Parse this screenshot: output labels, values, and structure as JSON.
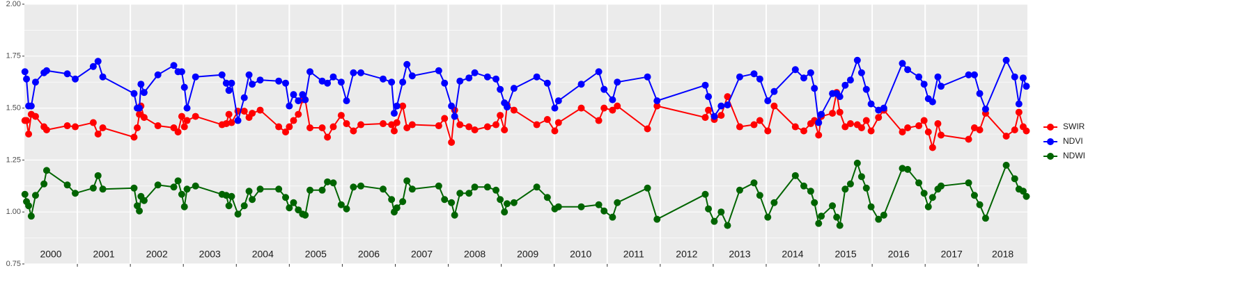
{
  "chart_data": {
    "type": "line",
    "x": [
      2000.01,
      2000.04,
      2000.08,
      2000.13,
      2000.21,
      2000.37,
      2000.42,
      2000.81,
      2000.96,
      2001.3,
      2001.39,
      2001.48,
      2002.07,
      2002.13,
      2002.17,
      2002.2,
      2002.26,
      2002.52,
      2002.82,
      2002.9,
      2002.97,
      2003.02,
      2003.07,
      2003.23,
      2003.73,
      2003.81,
      2003.86,
      2003.91,
      2004.03,
      2004.15,
      2004.24,
      2004.3,
      2004.45,
      2004.8,
      2004.93,
      2005.0,
      2005.08,
      2005.17,
      2005.25,
      2005.3,
      2005.39,
      2005.62,
      2005.72,
      2005.83,
      2005.98,
      2006.08,
      2006.21,
      2006.35,
      2006.77,
      2006.93,
      2006.98,
      2007.03,
      2007.14,
      2007.22,
      2007.32,
      2007.82,
      2007.93,
      2008.06,
      2008.12,
      2008.22,
      2008.39,
      2008.5,
      2008.74,
      2008.9,
      2008.98,
      2009.06,
      2009.11,
      2009.24,
      2009.67,
      2009.87,
      2010.01,
      2010.08,
      2010.51,
      2010.84,
      2010.94,
      2011.1,
      2011.19,
      2011.76,
      2011.94,
      2012.85,
      2012.91,
      2013.02,
      2013.15,
      2013.27,
      2013.5,
      2013.77,
      2013.88,
      2014.03,
      2014.15,
      2014.55,
      2014.71,
      2014.84,
      2014.91,
      2014.99,
      2015.04,
      2015.25,
      2015.33,
      2015.39,
      2015.49,
      2015.59,
      2015.72,
      2015.8,
      2015.89,
      2015.98,
      2016.12,
      2016.22,
      2016.57,
      2016.67,
      2016.88,
      2016.98,
      2017.06,
      2017.14,
      2017.24,
      2017.3,
      2017.82,
      2017.93,
      2018.03,
      2018.14,
      2018.53,
      2018.69,
      2018.77,
      2018.85,
      2018.91
    ],
    "series": [
      {
        "name": "SWIR",
        "color": "#ff0000",
        "values": [
          1.44,
          1.44,
          1.375,
          1.47,
          1.46,
          1.41,
          1.395,
          1.415,
          1.41,
          1.43,
          1.375,
          1.405,
          1.36,
          1.405,
          1.47,
          1.51,
          1.455,
          1.415,
          1.405,
          1.385,
          1.46,
          1.41,
          1.44,
          1.46,
          1.42,
          1.425,
          1.47,
          1.43,
          1.485,
          1.485,
          1.455,
          1.475,
          1.49,
          1.41,
          1.385,
          1.41,
          1.44,
          1.47,
          1.54,
          1.54,
          1.405,
          1.405,
          1.36,
          1.41,
          1.465,
          1.425,
          1.39,
          1.42,
          1.425,
          1.42,
          1.39,
          1.43,
          1.51,
          1.405,
          1.42,
          1.415,
          1.45,
          1.335,
          1.49,
          1.42,
          1.41,
          1.395,
          1.41,
          1.42,
          1.465,
          1.395,
          1.515,
          1.49,
          1.42,
          1.445,
          1.39,
          1.43,
          1.5,
          1.44,
          1.5,
          1.49,
          1.51,
          1.4,
          1.51,
          1.455,
          1.49,
          1.445,
          1.465,
          1.555,
          1.41,
          1.42,
          1.44,
          1.39,
          1.51,
          1.41,
          1.39,
          1.425,
          1.44,
          1.37,
          1.46,
          1.475,
          1.575,
          1.48,
          1.41,
          1.425,
          1.42,
          1.405,
          1.44,
          1.39,
          1.455,
          1.49,
          1.385,
          1.405,
          1.415,
          1.44,
          1.385,
          1.31,
          1.425,
          1.37,
          1.35,
          1.405,
          1.395,
          1.475,
          1.365,
          1.395,
          1.48,
          1.41,
          1.39
        ]
      },
      {
        "name": "NDVI",
        "color": "#0000ff",
        "values": [
          1.675,
          1.64,
          1.51,
          1.51,
          1.625,
          1.67,
          1.68,
          1.665,
          1.64,
          1.7,
          1.725,
          1.65,
          1.57,
          1.5,
          1.5,
          1.615,
          1.575,
          1.66,
          1.705,
          1.675,
          1.675,
          1.6,
          1.5,
          1.65,
          1.66,
          1.62,
          1.585,
          1.62,
          1.44,
          1.55,
          1.66,
          1.615,
          1.635,
          1.63,
          1.62,
          1.51,
          1.565,
          1.535,
          1.565,
          1.54,
          1.675,
          1.63,
          1.62,
          1.65,
          1.625,
          1.535,
          1.67,
          1.67,
          1.64,
          1.625,
          1.475,
          1.51,
          1.625,
          1.71,
          1.655,
          1.68,
          1.62,
          1.51,
          1.46,
          1.63,
          1.645,
          1.67,
          1.65,
          1.64,
          1.59,
          1.525,
          1.505,
          1.595,
          1.65,
          1.62,
          1.5,
          1.535,
          1.615,
          1.675,
          1.59,
          1.54,
          1.625,
          1.65,
          1.535,
          1.61,
          1.555,
          1.46,
          1.51,
          1.515,
          1.65,
          1.665,
          1.64,
          1.535,
          1.58,
          1.685,
          1.645,
          1.67,
          1.595,
          1.43,
          1.47,
          1.57,
          1.57,
          1.555,
          1.61,
          1.635,
          1.73,
          1.67,
          1.59,
          1.52,
          1.49,
          1.5,
          1.715,
          1.685,
          1.65,
          1.615,
          1.545,
          1.53,
          1.65,
          1.605,
          1.66,
          1.66,
          1.57,
          1.495,
          1.73,
          1.65,
          1.52,
          1.645,
          1.605
        ]
      },
      {
        "name": "NDWI",
        "color": "#006400",
        "values": [
          1.085,
          1.05,
          1.03,
          0.98,
          1.08,
          1.135,
          1.2,
          1.13,
          1.09,
          1.115,
          1.175,
          1.11,
          1.115,
          1.03,
          1.005,
          1.075,
          1.055,
          1.13,
          1.12,
          1.15,
          1.085,
          1.025,
          1.11,
          1.125,
          1.085,
          1.08,
          1.03,
          1.075,
          0.99,
          1.03,
          1.1,
          1.06,
          1.11,
          1.11,
          1.07,
          1.02,
          1.045,
          1.01,
          0.99,
          0.985,
          1.105,
          1.105,
          1.145,
          1.14,
          1.035,
          1.015,
          1.12,
          1.125,
          1.11,
          1.06,
          1.0,
          1.02,
          1.05,
          1.15,
          1.11,
          1.125,
          1.06,
          1.045,
          0.985,
          1.09,
          1.09,
          1.12,
          1.12,
          1.105,
          1.06,
          1.0,
          1.04,
          1.045,
          1.12,
          1.07,
          1.015,
          1.025,
          1.025,
          1.035,
          1.005,
          0.975,
          1.045,
          1.115,
          0.965,
          1.085,
          1.015,
          0.955,
          1.0,
          0.935,
          1.105,
          1.14,
          1.08,
          0.975,
          1.045,
          1.175,
          1.125,
          1.1,
          1.045,
          0.945,
          0.98,
          1.03,
          0.975,
          0.935,
          1.11,
          1.135,
          1.235,
          1.17,
          1.115,
          1.025,
          0.965,
          0.985,
          1.21,
          1.205,
          1.14,
          1.09,
          1.025,
          1.07,
          1.11,
          1.125,
          1.14,
          1.08,
          1.035,
          0.97,
          1.225,
          1.16,
          1.11,
          1.1,
          1.075
        ]
      }
    ],
    "xlim": [
      2000,
      2018.93
    ],
    "xticks": [
      2001,
      2002,
      2003,
      2004,
      2005,
      2006,
      2007,
      2008,
      2009,
      2010,
      2011,
      2012,
      2013,
      2014,
      2015,
      2016,
      2017,
      2018
    ],
    "year_labels": [
      "2000",
      "2001",
      "2002",
      "2003",
      "2004",
      "2005",
      "2006",
      "2007",
      "2008",
      "2009",
      "2010",
      "2011",
      "2012",
      "2013",
      "2014",
      "2015",
      "2016",
      "2017",
      "2018"
    ],
    "ylim": [
      0.75,
      2.0
    ],
    "yticks": [
      {
        "value": 0.75,
        "label": "0.75"
      },
      {
        "value": 1.0,
        "label": "1.00"
      },
      {
        "value": 1.25,
        "label": "1.25"
      },
      {
        "value": 1.5,
        "label": "1.50"
      },
      {
        "value": 1.75,
        "label": "1.75"
      },
      {
        "value": 2.0,
        "label": "2.00"
      }
    ],
    "grid": true,
    "legend": "right"
  }
}
